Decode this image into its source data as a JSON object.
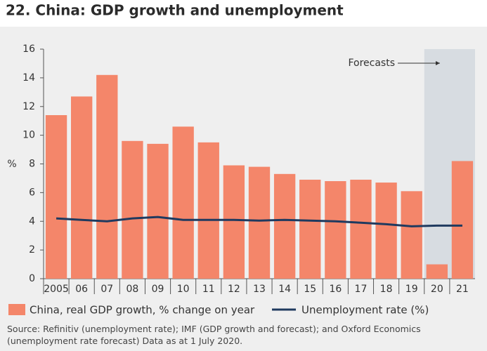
{
  "chart_data": {
    "type": "bar",
    "title": "22. China: GDP growth and unemployment",
    "y_label": "%",
    "categories": [
      "2005",
      "06",
      "07",
      "08",
      "09",
      "10",
      "11",
      "12",
      "13",
      "14",
      "15",
      "16",
      "17",
      "18",
      "19",
      "20",
      "21"
    ],
    "series": [
      {
        "name": "China, real GDP growth, % change on year",
        "type": "bar",
        "color": "#f4866a",
        "values": [
          11.4,
          12.7,
          14.2,
          9.6,
          9.4,
          10.6,
          9.5,
          7.9,
          7.8,
          7.3,
          6.9,
          6.8,
          6.9,
          6.7,
          6.1,
          1.0,
          8.2
        ]
      },
      {
        "name": "Unemployment rate (%)",
        "type": "line",
        "color": "#1f3a5f",
        "values": [
          4.2,
          4.1,
          4.0,
          4.2,
          4.3,
          4.1,
          4.1,
          4.1,
          4.05,
          4.1,
          4.05,
          4.0,
          3.9,
          3.8,
          3.65,
          3.7,
          3.7
        ]
      }
    ],
    "forecast": {
      "label": "Forecasts",
      "from": "20",
      "color": "#d7dce1"
    },
    "ylim": [
      0,
      16
    ],
    "yticks": [
      0,
      2,
      4,
      6,
      8,
      10,
      12,
      14,
      16
    ],
    "source": "Source: Refinitiv (unemployment rate); IMF (GDP growth and forecast); and Oxford Economics (unemployment rate forecast) Data as at 1 July 2020."
  }
}
